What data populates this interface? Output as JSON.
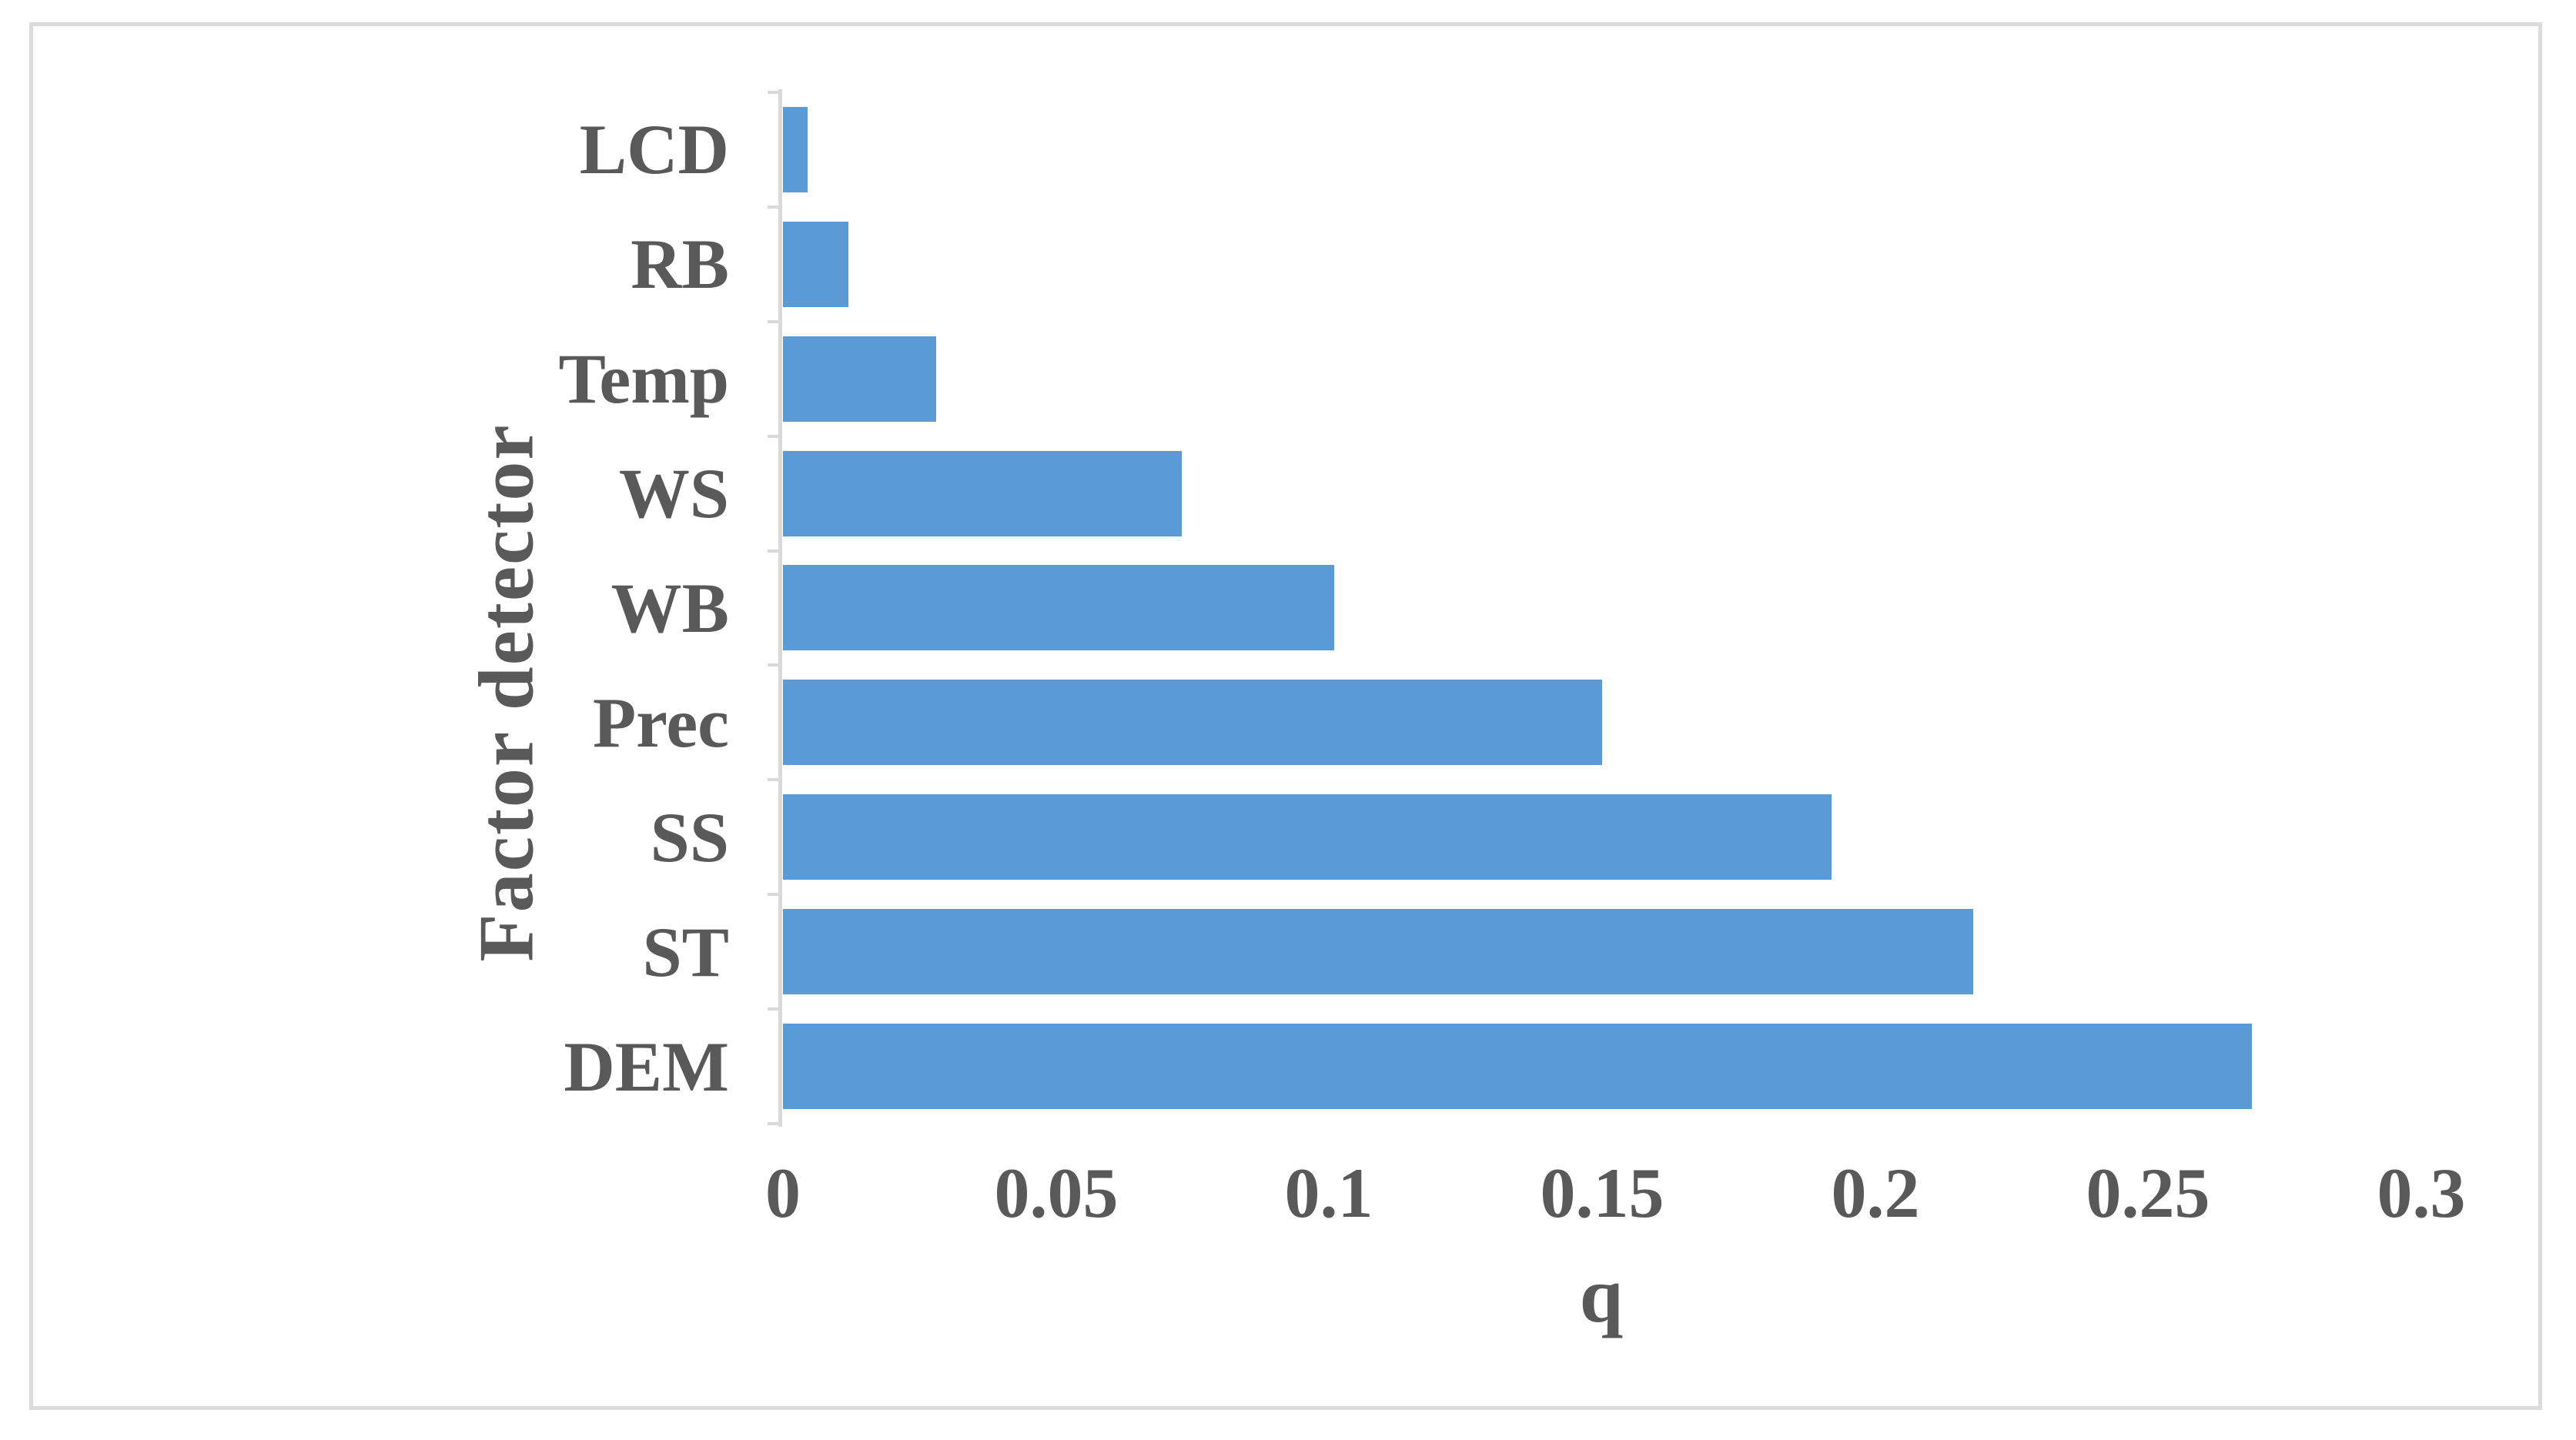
{
  "figure": {
    "background_color": "#ffffff",
    "frame_color": "#dcdcdc"
  },
  "chart_data": {
    "type": "bar",
    "orientation": "horizontal",
    "title": "",
    "xlabel": "q",
    "ylabel": "Factor detector",
    "categories": [
      "LCD",
      "RB",
      "Temp",
      "WS",
      "WB",
      "Prec",
      "SS",
      "ST",
      "DEM"
    ],
    "values": [
      0.0045,
      0.012,
      0.028,
      0.073,
      0.101,
      0.15,
      0.192,
      0.218,
      0.269
    ],
    "xlim": [
      0,
      0.3
    ],
    "xticks": [
      0,
      0.05,
      0.1,
      0.15,
      0.2,
      0.25,
      0.3
    ],
    "xtick_labels": [
      "0",
      "0.05",
      "0.1",
      "0.15",
      "0.2",
      "0.25",
      "0.3"
    ],
    "grid": false,
    "legend": null,
    "bar_color": "#5B9BD5",
    "text_color": "#595959",
    "axis_line_color": "#d9d9d9"
  }
}
